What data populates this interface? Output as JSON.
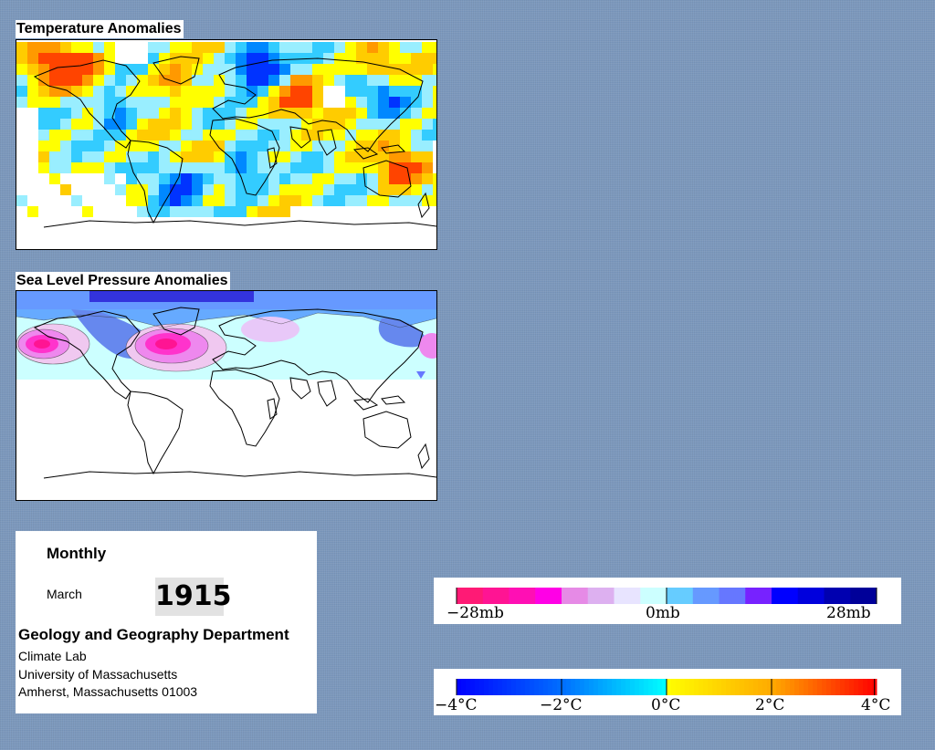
{
  "temperature_panel": {
    "title": "Temperature Anomalies"
  },
  "pressure_panel": {
    "title": "Sea Level Pressure Anomalies"
  },
  "info": {
    "period_type": "Monthly",
    "month": "March",
    "year": "1915",
    "department": "Geology and Geography Department",
    "lab": "Climate Lab",
    "university": "University of Massachusetts",
    "address": "Amherst, Massachusetts 01003"
  },
  "pressure_legend": {
    "colors": [
      "#ff1a75",
      "#ff1493",
      "#ff0fb4",
      "#ff00e6",
      "#e68ae6",
      "#ddb0f0",
      "#e8e4ff",
      "#ccffff",
      "#66ccff",
      "#6699ff",
      "#6677ff",
      "#7722ff",
      "#0000ff",
      "#0000dd",
      "#0000b0",
      "#000099"
    ],
    "labels": [
      "−28mb",
      "0mb",
      "28mb"
    ]
  },
  "temperature_legend": {
    "colors": [
      "#0000ff",
      "#0055ee",
      "#0088ff",
      "#00bbff",
      "#00dddd",
      "#00ffff",
      "#ffff00",
      "#ffdd00",
      "#ffaa00",
      "#ff7700",
      "#ff4400",
      "#ff0000"
    ],
    "labels": [
      "−4°C",
      "−2°C",
      "0°C",
      "2°C",
      "4°C"
    ]
  }
}
